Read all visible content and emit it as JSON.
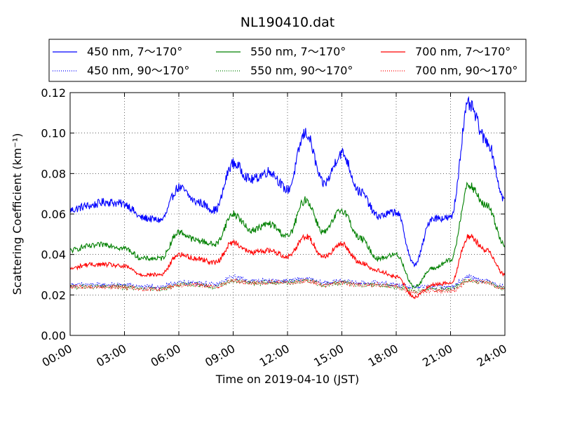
{
  "chart_data": {
    "type": "line",
    "title": "NL190410.dat",
    "xlabel": "Time on 2019-04-10 (JST)",
    "ylabel": "Scattering Coefficient (km⁻¹)",
    "x_ticks": [
      "00:00",
      "03:00",
      "06:00",
      "09:00",
      "12:00",
      "15:00",
      "18:00",
      "21:00",
      "24:00"
    ],
    "y_ticks": [
      "0.00",
      "0.02",
      "0.04",
      "0.06",
      "0.08",
      "0.10",
      "0.12"
    ],
    "xlim_hours": [
      0,
      24
    ],
    "ylim": [
      0,
      0.12
    ],
    "grid": true,
    "legend_position": "top, above plot",
    "x_hours": [
      0,
      1,
      2,
      3,
      4,
      5,
      6,
      7,
      8,
      9,
      10,
      11,
      12,
      13,
      14,
      15,
      16,
      17,
      18,
      19,
      20,
      21,
      22,
      23,
      24
    ],
    "series": [
      {
        "name": "450 nm, 7～170°",
        "color": "#0000ff",
        "style": "solid",
        "values": [
          0.062,
          0.064,
          0.066,
          0.065,
          0.058,
          0.057,
          0.073,
          0.066,
          0.062,
          0.085,
          0.077,
          0.081,
          0.072,
          0.1,
          0.075,
          0.09,
          0.071,
          0.059,
          0.061,
          0.035,
          0.058,
          0.058,
          0.114,
          0.096,
          0.067
        ]
      },
      {
        "name": "450 nm, 90～170°",
        "color": "#0000ff",
        "style": "dotted",
        "values": [
          0.025,
          0.025,
          0.025,
          0.025,
          0.024,
          0.024,
          0.026,
          0.026,
          0.025,
          0.029,
          0.027,
          0.027,
          0.027,
          0.028,
          0.026,
          0.027,
          0.026,
          0.026,
          0.025,
          0.024,
          0.024,
          0.024,
          0.029,
          0.027,
          0.024
        ]
      },
      {
        "name": "550 nm, 7～170°",
        "color": "#008000",
        "style": "solid",
        "values": [
          0.042,
          0.044,
          0.045,
          0.043,
          0.038,
          0.038,
          0.051,
          0.047,
          0.045,
          0.06,
          0.052,
          0.055,
          0.049,
          0.067,
          0.051,
          0.062,
          0.048,
          0.038,
          0.04,
          0.024,
          0.033,
          0.037,
          0.074,
          0.064,
          0.045
        ]
      },
      {
        "name": "550 nm, 90～170°",
        "color": "#008000",
        "style": "dotted",
        "values": [
          0.024,
          0.024,
          0.024,
          0.024,
          0.023,
          0.023,
          0.025,
          0.025,
          0.024,
          0.027,
          0.026,
          0.026,
          0.026,
          0.027,
          0.025,
          0.026,
          0.025,
          0.025,
          0.024,
          0.022,
          0.023,
          0.023,
          0.027,
          0.026,
          0.023
        ]
      },
      {
        "name": "700 nm, 7～170°",
        "color": "#ff0000",
        "style": "solid",
        "values": [
          0.033,
          0.035,
          0.035,
          0.034,
          0.03,
          0.03,
          0.04,
          0.038,
          0.036,
          0.046,
          0.041,
          0.042,
          0.039,
          0.049,
          0.039,
          0.045,
          0.036,
          0.032,
          0.029,
          0.019,
          0.025,
          0.026,
          0.049,
          0.042,
          0.03
        ]
      },
      {
        "name": "700 nm, 90～170°",
        "color": "#ff0000",
        "style": "dotted",
        "values": [
          0.024,
          0.024,
          0.024,
          0.024,
          0.023,
          0.023,
          0.025,
          0.025,
          0.024,
          0.027,
          0.026,
          0.026,
          0.026,
          0.027,
          0.025,
          0.026,
          0.025,
          0.025,
          0.024,
          0.021,
          0.022,
          0.022,
          0.027,
          0.026,
          0.023
        ]
      }
    ]
  }
}
